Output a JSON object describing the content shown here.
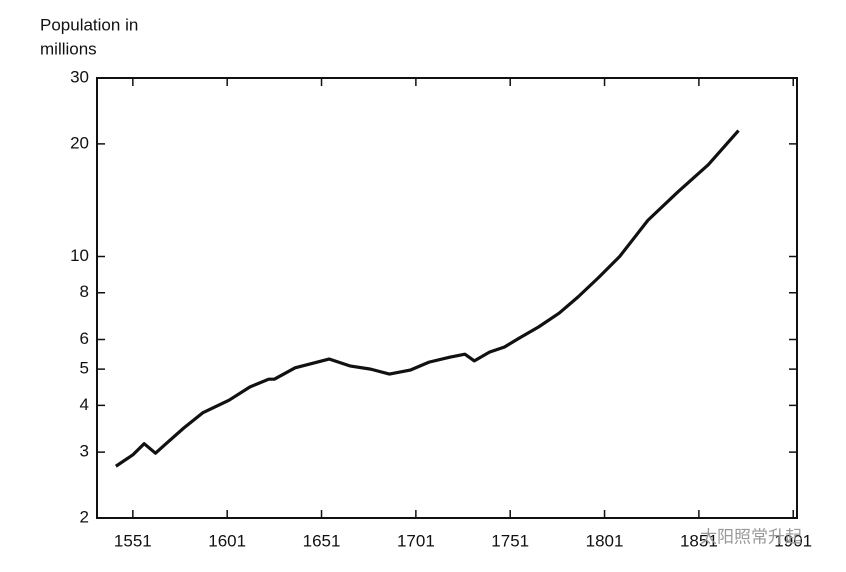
{
  "chart_data": {
    "type": "line",
    "y_label": [
      "Population in",
      "millions"
    ],
    "x": [
      1542,
      1551,
      1557,
      1563,
      1568,
      1578,
      1588,
      1602,
      1613,
      1623,
      1626,
      1637,
      1655,
      1666,
      1677,
      1687,
      1698,
      1708,
      1719,
      1727,
      1732,
      1740,
      1748,
      1756,
      1766,
      1777,
      1787,
      1798,
      1809,
      1824,
      1840,
      1856,
      1872
    ],
    "series": [
      {
        "name": "Population",
        "color": "#111111",
        "values": [
          2.75,
          2.95,
          3.16,
          2.98,
          3.14,
          3.48,
          3.82,
          4.13,
          4.48,
          4.7,
          4.7,
          5.04,
          5.32,
          5.1,
          5.0,
          4.85,
          4.97,
          5.22,
          5.38,
          5.48,
          5.26,
          5.55,
          5.73,
          6.06,
          6.48,
          7.06,
          7.8,
          8.8,
          10.0,
          12.5,
          14.9,
          17.6,
          21.7
        ]
      }
    ],
    "xlim": [
      1532,
      1903
    ],
    "xticks": [
      1551,
      1601,
      1651,
      1701,
      1751,
      1801,
      1851,
      1901
    ],
    "ylim": [
      2,
      30
    ],
    "yticks": [
      2,
      3,
      4,
      5,
      6,
      8,
      10,
      20,
      30
    ],
    "log_y": true,
    "watermark": "太阳照常升起"
  }
}
